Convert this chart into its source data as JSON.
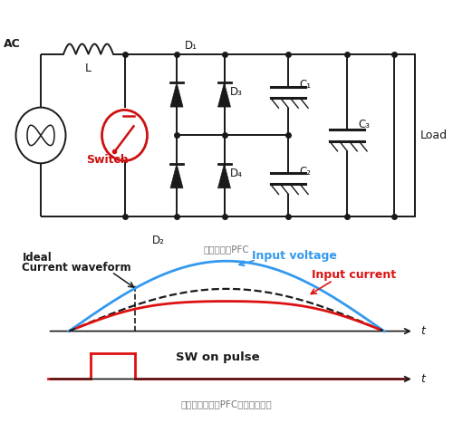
{
  "bg_color": "#ffffff",
  "title1": "部分开关式PFC",
  "title2": "使用部分开关式PFC后的电流波形",
  "label_AC": "AC",
  "label_L": "L",
  "label_Switch": "Switch",
  "label_D1": "D₁",
  "label_D2": "D₂",
  "label_D3": "D₃",
  "label_D4": "D₄",
  "label_C1": "C₁",
  "label_C2": "C₂",
  "label_C3": "C₃",
  "label_Load": "Load",
  "waveform_text1": "Ideal",
  "waveform_text2": "Current waveform",
  "text_input_voltage": "Input voltage",
  "text_input_current": "Input current",
  "text_sw_pulse": "SW on pulse",
  "color_blue": "#3399ee",
  "color_red": "#dd1111",
  "color_black": "#1a1a1a",
  "color_switch_red": "#cc1111",
  "color_gray": "#777777"
}
